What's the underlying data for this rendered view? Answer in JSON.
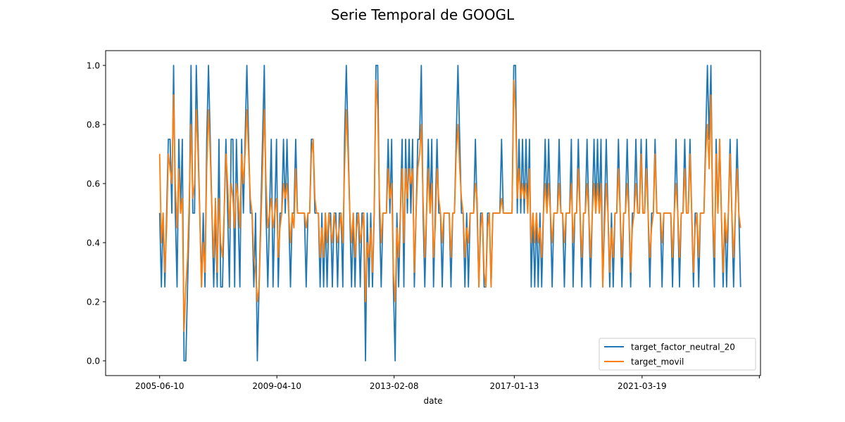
{
  "chart_data": {
    "type": "line",
    "title": "Serie Temporal de GOOGL",
    "xlabel": "date",
    "ylabel": "",
    "x_start": "2005-06-10",
    "x_end": "2024-06-07",
    "x_range": [
      "2003-09-04",
      "2025-01-31"
    ],
    "ylim": [
      -0.05,
      1.05
    ],
    "yticks": [
      0.0,
      0.2,
      0.4,
      0.6,
      0.8,
      1.0
    ],
    "ytick_labels": [
      "0.0",
      "0.2",
      "0.4",
      "0.6",
      "0.8",
      "1.0"
    ],
    "xticks": [
      "2005-06-10",
      "2009-04-10",
      "2013-02-08",
      "2017-01-13",
      "2021-03-19",
      "2025-01-17"
    ],
    "xtick_labels": [
      "2005-06-10",
      "2009-04-10",
      "2013-02-08",
      "2017-01-13",
      "2021-03-19",
      ""
    ],
    "grid": false,
    "legend_position": "lower right",
    "series": [
      {
        "name": "target_factor_neutral_20",
        "color": "#1f77b4",
        "values": [
          0.5,
          0.25,
          0.5,
          0.25,
          0.5,
          0.75,
          0.75,
          0.5,
          1.0,
          0.5,
          0.25,
          0.75,
          0.5,
          0.75,
          0.0,
          0.0,
          0.25,
          0.5,
          1.0,
          0.5,
          0.5,
          1.0,
          0.75,
          0.5,
          0.25,
          0.5,
          0.25,
          0.75,
          1.0,
          0.75,
          0.5,
          0.25,
          0.5,
          0.25,
          0.75,
          0.25,
          0.25,
          0.5,
          0.75,
          0.5,
          0.25,
          0.75,
          0.75,
          0.25,
          0.75,
          0.5,
          0.25,
          0.75,
          0.5,
          0.75,
          1.0,
          0.75,
          0.5,
          0.5,
          0.25,
          0.5,
          0.0,
          0.25,
          0.5,
          0.75,
          1.0,
          0.5,
          0.25,
          0.5,
          0.75,
          0.25,
          0.5,
          0.75,
          0.25,
          0.5,
          0.5,
          0.75,
          0.5,
          0.75,
          0.5,
          0.25,
          0.5,
          0.5,
          0.75,
          0.5,
          0.5,
          0.5,
          0.5,
          0.5,
          0.25,
          0.5,
          0.5,
          0.75,
          0.75,
          0.5,
          0.5,
          0.5,
          0.25,
          0.5,
          0.25,
          0.5,
          0.25,
          0.5,
          0.5,
          0.25,
          0.5,
          0.5,
          0.25,
          0.5,
          0.5,
          0.25,
          0.75,
          1.0,
          0.75,
          0.5,
          0.25,
          0.5,
          0.25,
          0.5,
          0.5,
          0.25,
          0.5,
          0.5,
          0.0,
          0.5,
          0.25,
          0.5,
          0.25,
          0.5,
          1.0,
          1.0,
          0.5,
          0.25,
          0.5,
          0.5,
          0.5,
          0.75,
          0.5,
          0.75,
          0.25,
          0.0,
          0.5,
          0.25,
          0.5,
          0.75,
          0.25,
          0.75,
          0.5,
          0.75,
          0.5,
          0.75,
          0.25,
          0.5,
          0.75,
          0.75,
          1.0,
          0.5,
          0.25,
          0.5,
          0.75,
          0.5,
          0.75,
          0.25,
          0.5,
          0.75,
          0.5,
          0.5,
          0.25,
          0.5,
          0.5,
          0.5,
          0.5,
          0.25,
          0.5,
          0.5,
          0.75,
          1.0,
          0.75,
          0.5,
          0.5,
          0.25,
          0.5,
          0.25,
          0.5,
          0.5,
          0.5,
          0.75,
          0.5,
          0.25,
          0.5,
          0.5,
          0.25,
          0.25,
          0.5,
          0.5,
          0.25,
          0.5,
          0.5,
          0.5,
          0.5,
          0.5,
          0.75,
          0.5,
          0.5,
          0.5,
          0.5,
          0.5,
          0.5,
          1.0,
          1.0,
          0.5,
          0.75,
          0.5,
          0.75,
          0.5,
          0.75,
          0.5,
          0.75,
          0.25,
          0.5,
          0.25,
          0.5,
          0.25,
          0.5,
          0.25,
          0.5,
          0.75,
          0.5,
          0.75,
          0.5,
          0.25,
          0.5,
          0.5,
          0.5,
          0.75,
          0.5,
          0.5,
          0.25,
          0.5,
          0.5,
          0.5,
          0.75,
          0.25,
          0.5,
          0.5,
          0.75,
          0.5,
          0.25,
          0.5,
          0.5,
          0.75,
          0.5,
          0.25,
          0.5,
          0.75,
          0.5,
          0.75,
          0.5,
          0.75,
          0.25,
          0.5,
          0.75,
          0.5,
          0.25,
          0.5,
          0.25,
          0.5,
          0.5,
          0.75,
          0.5,
          0.25,
          0.5,
          0.5,
          0.75,
          0.5,
          0.25,
          0.5,
          0.5,
          0.75,
          0.5,
          0.5,
          0.75,
          0.5,
          0.5,
          0.75,
          0.5,
          0.25,
          0.5,
          0.5,
          0.75,
          0.5,
          0.5,
          0.5,
          0.25,
          0.5,
          0.5,
          0.5,
          0.5,
          0.5,
          0.25,
          0.5,
          0.75,
          0.5,
          0.25,
          0.5,
          0.5,
          0.75,
          0.5,
          0.5,
          0.75,
          0.5,
          0.25,
          0.5,
          0.5,
          0.25,
          0.5,
          0.5,
          0.5,
          0.75,
          1.0,
          0.75,
          1.0,
          0.5,
          0.25,
          0.75,
          0.5,
          0.75,
          0.5,
          0.25,
          0.5,
          0.25,
          0.5,
          0.75,
          0.5,
          0.25,
          0.5,
          0.75,
          0.5,
          0.25
        ]
      },
      {
        "name": "target_movil",
        "color": "#ff7f0e",
        "values": [
          0.7,
          0.4,
          0.5,
          0.3,
          0.45,
          0.7,
          0.65,
          0.6,
          0.9,
          0.6,
          0.45,
          0.65,
          0.5,
          0.55,
          0.1,
          0.25,
          0.35,
          0.55,
          0.8,
          0.55,
          0.6,
          0.85,
          0.7,
          0.5,
          0.25,
          0.4,
          0.3,
          0.65,
          0.85,
          0.7,
          0.5,
          0.35,
          0.55,
          0.3,
          0.55,
          0.4,
          0.35,
          0.5,
          0.7,
          0.6,
          0.45,
          0.6,
          0.55,
          0.45,
          0.6,
          0.55,
          0.45,
          0.7,
          0.6,
          0.7,
          0.85,
          0.7,
          0.55,
          0.5,
          0.35,
          0.3,
          0.2,
          0.25,
          0.45,
          0.65,
          0.85,
          0.6,
          0.45,
          0.5,
          0.55,
          0.45,
          0.5,
          0.55,
          0.35,
          0.45,
          0.5,
          0.6,
          0.55,
          0.6,
          0.5,
          0.4,
          0.5,
          0.45,
          0.65,
          0.5,
          0.5,
          0.5,
          0.5,
          0.5,
          0.45,
          0.5,
          0.5,
          0.7,
          0.75,
          0.55,
          0.5,
          0.5,
          0.35,
          0.45,
          0.35,
          0.5,
          0.4,
          0.5,
          0.45,
          0.4,
          0.5,
          0.45,
          0.4,
          0.45,
          0.5,
          0.4,
          0.65,
          0.85,
          0.7,
          0.5,
          0.4,
          0.5,
          0.35,
          0.45,
          0.5,
          0.4,
          0.45,
          0.5,
          0.2,
          0.4,
          0.35,
          0.45,
          0.3,
          0.5,
          0.95,
          0.85,
          0.55,
          0.4,
          0.5,
          0.5,
          0.5,
          0.65,
          0.55,
          0.6,
          0.3,
          0.2,
          0.45,
          0.35,
          0.5,
          0.65,
          0.4,
          0.65,
          0.55,
          0.65,
          0.6,
          0.65,
          0.3,
          0.5,
          0.65,
          0.7,
          0.8,
          0.55,
          0.35,
          0.5,
          0.65,
          0.5,
          0.6,
          0.35,
          0.45,
          0.65,
          0.55,
          0.5,
          0.4,
          0.5,
          0.5,
          0.5,
          0.5,
          0.35,
          0.5,
          0.5,
          0.7,
          0.8,
          0.65,
          0.55,
          0.5,
          0.35,
          0.45,
          0.4,
          0.5,
          0.5,
          0.5,
          0.6,
          0.55,
          0.25,
          0.45,
          0.5,
          0.3,
          0.25,
          0.45,
          0.5,
          0.25,
          0.5,
          0.5,
          0.5,
          0.5,
          0.5,
          0.55,
          0.5,
          0.5,
          0.5,
          0.5,
          0.5,
          0.5,
          0.95,
          0.85,
          0.55,
          0.65,
          0.55,
          0.6,
          0.55,
          0.6,
          0.5,
          0.65,
          0.4,
          0.5,
          0.4,
          0.5,
          0.4,
          0.45,
          0.35,
          0.5,
          0.6,
          0.5,
          0.6,
          0.5,
          0.4,
          0.5,
          0.5,
          0.5,
          0.6,
          0.5,
          0.5,
          0.4,
          0.5,
          0.5,
          0.5,
          0.6,
          0.4,
          0.5,
          0.5,
          0.65,
          0.5,
          0.35,
          0.5,
          0.5,
          0.6,
          0.5,
          0.35,
          0.5,
          0.6,
          0.5,
          0.6,
          0.5,
          0.6,
          0.25,
          0.45,
          0.6,
          0.5,
          0.3,
          0.45,
          0.35,
          0.5,
          0.5,
          0.65,
          0.5,
          0.35,
          0.5,
          0.5,
          0.6,
          0.5,
          0.3,
          0.45,
          0.5,
          0.6,
          0.5,
          0.5,
          0.7,
          0.5,
          0.5,
          0.65,
          0.5,
          0.35,
          0.45,
          0.5,
          0.7,
          0.5,
          0.5,
          0.5,
          0.4,
          0.5,
          0.5,
          0.5,
          0.5,
          0.5,
          0.35,
          0.5,
          0.6,
          0.5,
          0.35,
          0.5,
          0.5,
          0.65,
          0.5,
          0.5,
          0.7,
          0.5,
          0.3,
          0.45,
          0.5,
          0.35,
          0.5,
          0.5,
          0.5,
          0.7,
          0.8,
          0.65,
          0.9,
          0.5,
          0.35,
          0.7,
          0.5,
          0.75,
          0.5,
          0.3,
          0.5,
          0.4,
          0.5,
          0.7,
          0.5,
          0.35,
          0.5,
          0.65,
          0.5,
          0.45
        ]
      }
    ]
  }
}
